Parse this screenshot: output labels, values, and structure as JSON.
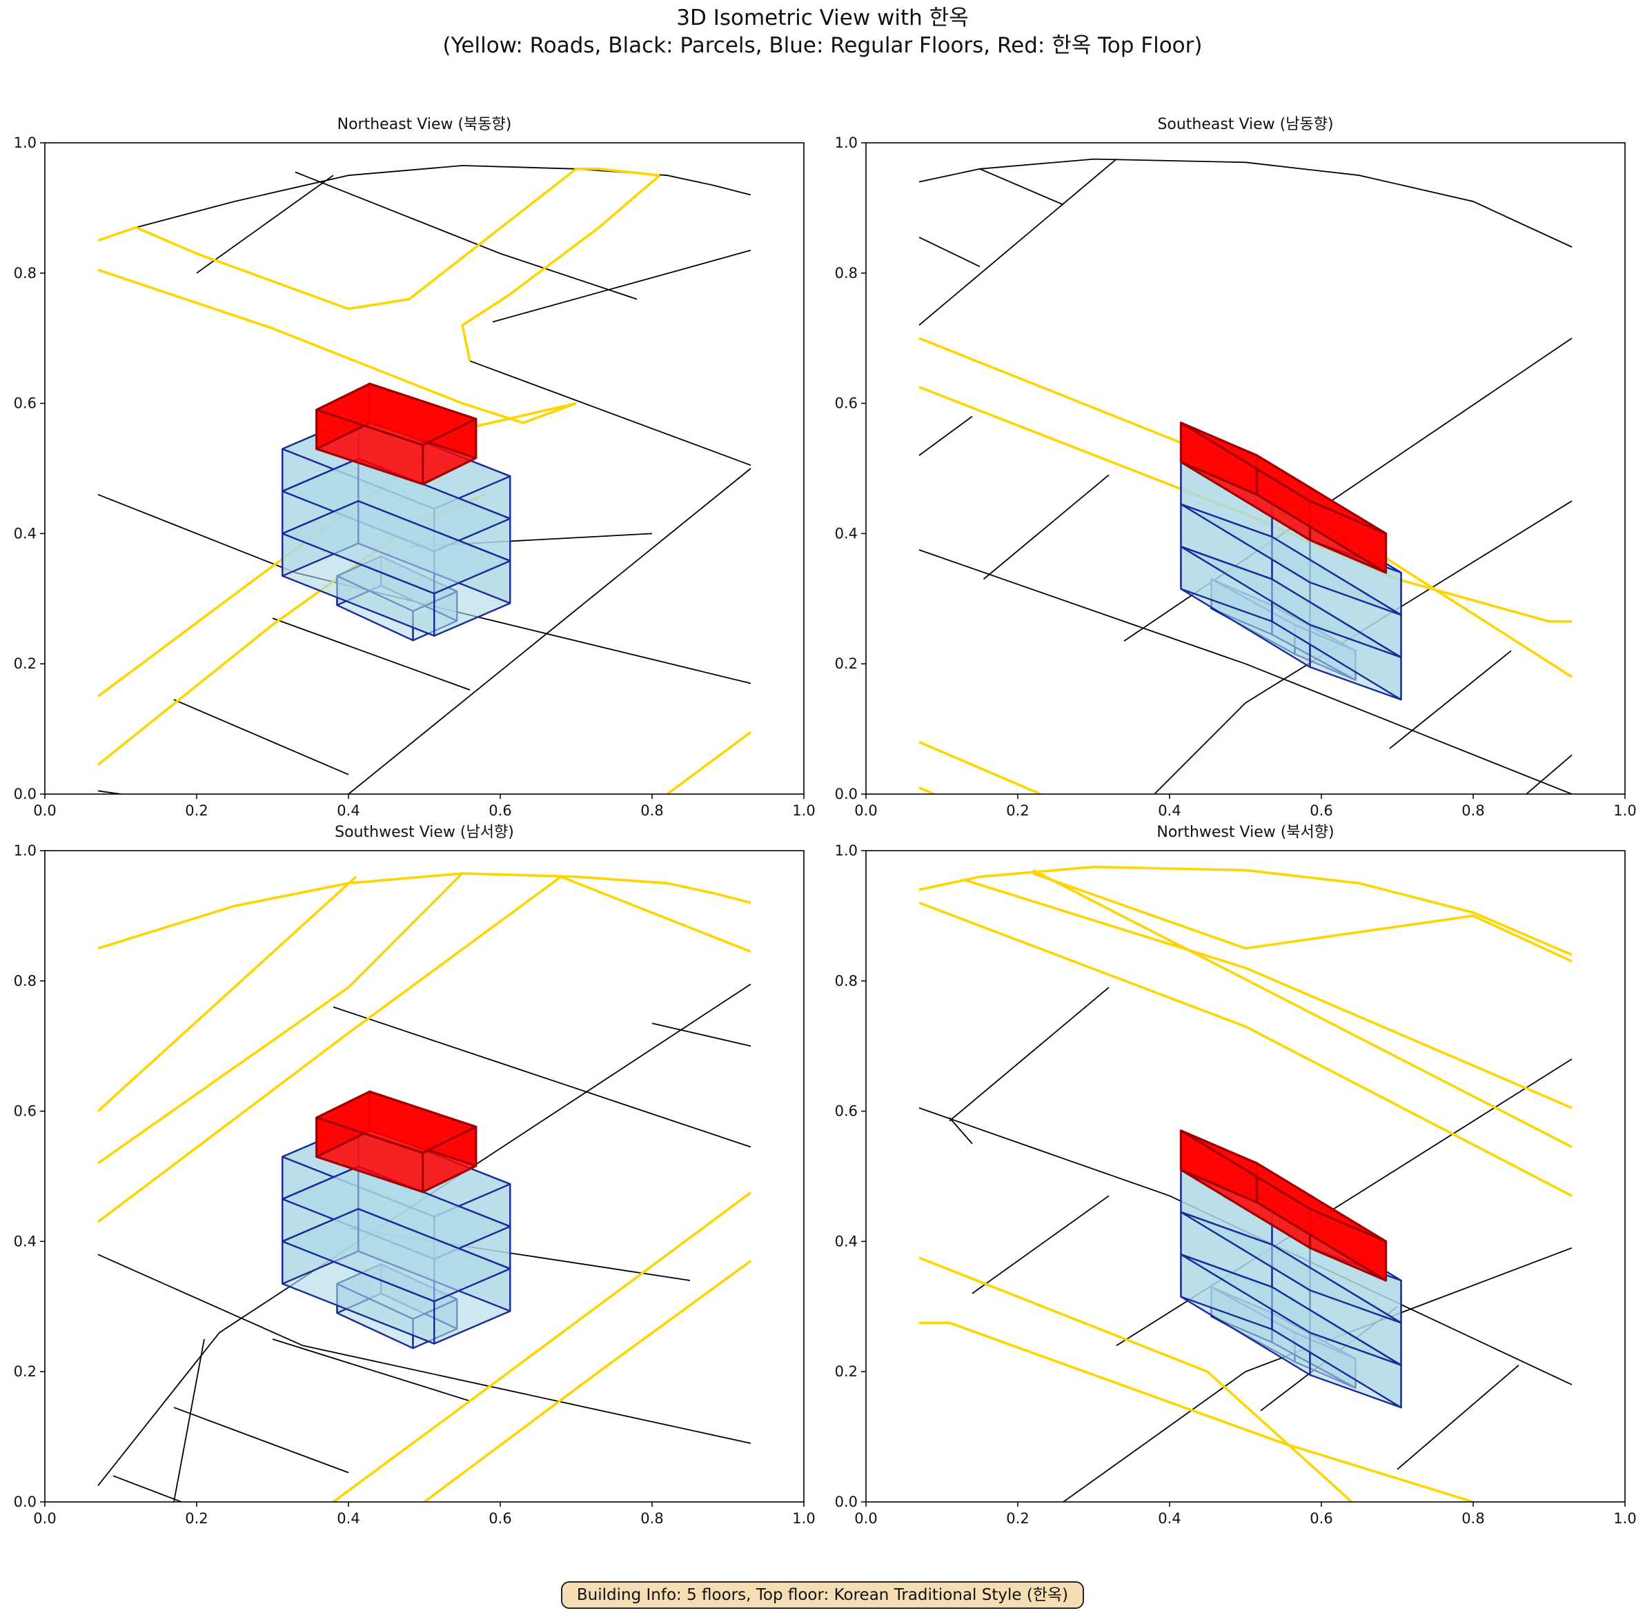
{
  "figure": {
    "title_line1": "3D Isometric View with 한옥",
    "title_line2": "(Yellow: Roads, Black: Parcels, Blue: Regular Floors, Red: 한옥 Top Floor)",
    "info_box": "Building Info: 5 floors, Top floor: Korean Traditional Style (한옥)"
  },
  "colors": {
    "road": "#FFD500",
    "road_edge": "#1a1a00",
    "parcel": "#000000",
    "floor_fill": "#ADD8E6",
    "floor_edge": "#1a2a9a",
    "hanok_fill": "#FF0000",
    "hanok_edge": "#a00000"
  },
  "chart_data": [
    {
      "type": "line",
      "title": "Northeast View (북동향)",
      "xlim": [
        0,
        1
      ],
      "ylim": [
        0,
        1
      ],
      "xticks": [
        "0.0",
        "0.2",
        "0.4",
        "0.6",
        "0.8",
        "1.0"
      ],
      "yticks": [
        "0.0",
        "0.2",
        "0.4",
        "0.6",
        "0.8",
        "1.0"
      ],
      "roads": [
        [
          [
            0.07,
            0.85
          ],
          [
            0.12,
            0.87
          ],
          [
            0.2,
            0.83
          ],
          [
            0.4,
            0.745
          ],
          [
            0.48,
            0.76
          ],
          [
            0.7,
            0.96
          ],
          [
            0.73,
            0.96
          ],
          [
            0.81,
            0.95
          ]
        ],
        [
          [
            0.07,
            0.805
          ],
          [
            0.3,
            0.715
          ],
          [
            0.55,
            0.6
          ],
          [
            0.63,
            0.57
          ],
          [
            0.7,
            0.6
          ]
        ],
        [
          [
            0.07,
            0.15
          ],
          [
            0.3,
            0.35
          ],
          [
            0.55,
            0.56
          ],
          [
            0.7,
            0.6
          ]
        ],
        [
          [
            0.07,
            0.045
          ],
          [
            0.3,
            0.26
          ],
          [
            0.48,
            0.41
          ],
          [
            0.58,
            0.46
          ]
        ],
        [
          [
            0.56,
            0.665
          ],
          [
            0.55,
            0.72
          ],
          [
            0.61,
            0.765
          ],
          [
            0.73,
            0.87
          ],
          [
            0.81,
            0.95
          ]
        ],
        [
          [
            0.82,
            0.0
          ],
          [
            0.93,
            0.095
          ]
        ]
      ],
      "parcels": [
        [
          [
            0.12,
            0.87
          ],
          [
            0.25,
            0.91
          ],
          [
            0.4,
            0.95
          ],
          [
            0.55,
            0.965
          ],
          [
            0.7,
            0.96
          ],
          [
            0.82,
            0.95
          ],
          [
            0.88,
            0.935
          ],
          [
            0.93,
            0.92
          ]
        ],
        [
          [
            0.2,
            0.8
          ],
          [
            0.38,
            0.95
          ]
        ],
        [
          [
            0.33,
            0.955
          ],
          [
            0.6,
            0.83
          ],
          [
            0.78,
            0.76
          ]
        ],
        [
          [
            0.56,
            0.665
          ],
          [
            0.93,
            0.505
          ]
        ],
        [
          [
            0.59,
            0.725
          ],
          [
            0.93,
            0.835
          ]
        ],
        [
          [
            0.07,
            0.46
          ],
          [
            0.33,
            0.34
          ],
          [
            0.93,
            0.17
          ]
        ],
        [
          [
            0.3,
            0.27
          ],
          [
            0.56,
            0.16
          ]
        ],
        [
          [
            0.4,
            0.0
          ],
          [
            0.93,
            0.5
          ]
        ],
        [
          [
            0.17,
            0.145
          ],
          [
            0.4,
            0.03
          ]
        ],
        [
          [
            0.07,
            0.005
          ],
          [
            0.1,
            0.0
          ]
        ],
        [
          [
            0.48,
            0.38
          ],
          [
            0.8,
            0.4
          ]
        ]
      ],
      "building": {
        "cx": 0.413,
        "top": 0.53,
        "floor_h": 0.065,
        "wx": 0.1,
        "wy": 0.046,
        "dx": 0.1,
        "dy": -0.05,
        "annex": {
          "cx": 0.435,
          "top": 0.335,
          "h": 0.045,
          "wx": 0.05,
          "wy": 0.027,
          "dx": 0.058,
          "dy": -0.03
        },
        "hanok": {
          "h": 0.06,
          "wx": 0.07,
          "wy": 0.027,
          "dx": 0.07,
          "dy": -0.04
        }
      }
    },
    {
      "type": "line",
      "title": "Southeast View (남동향)",
      "xlim": [
        0,
        1
      ],
      "ylim": [
        0,
        1
      ],
      "xticks": [
        "0.0",
        "0.2",
        "0.4",
        "0.6",
        "0.8",
        "1.0"
      ],
      "yticks": [
        "0.0",
        "0.2",
        "0.4",
        "0.6",
        "0.8",
        "1.0"
      ],
      "roads": [
        [
          [
            0.07,
            0.7
          ],
          [
            0.5,
            0.5
          ],
          [
            0.93,
            0.18
          ]
        ],
        [
          [
            0.07,
            0.625
          ],
          [
            0.5,
            0.43
          ],
          [
            0.7,
            0.33
          ],
          [
            0.9,
            0.265
          ],
          [
            0.93,
            0.265
          ]
        ],
        [
          [
            0.07,
            0.08
          ],
          [
            0.23,
            0.0
          ]
        ],
        [
          [
            0.07,
            0.01
          ],
          [
            0.09,
            0.0
          ]
        ]
      ],
      "parcels": [
        [
          [
            0.07,
            0.94
          ],
          [
            0.15,
            0.96
          ],
          [
            0.3,
            0.975
          ],
          [
            0.5,
            0.97
          ],
          [
            0.65,
            0.95
          ],
          [
            0.8,
            0.91
          ],
          [
            0.93,
            0.84
          ]
        ],
        [
          [
            0.07,
            0.72
          ],
          [
            0.33,
            0.975
          ]
        ],
        [
          [
            0.15,
            0.96
          ],
          [
            0.26,
            0.905
          ]
        ],
        [
          [
            0.07,
            0.855
          ],
          [
            0.15,
            0.81
          ]
        ],
        [
          [
            0.07,
            0.52
          ],
          [
            0.14,
            0.58
          ]
        ],
        [
          [
            0.07,
            0.375
          ],
          [
            0.5,
            0.2
          ],
          [
            0.93,
            0.0
          ]
        ],
        [
          [
            0.155,
            0.33
          ],
          [
            0.32,
            0.49
          ]
        ],
        [
          [
            0.34,
            0.235
          ],
          [
            0.93,
            0.7
          ]
        ],
        [
          [
            0.38,
            0.0
          ],
          [
            0.5,
            0.14
          ],
          [
            0.93,
            0.45
          ]
        ],
        [
          [
            0.69,
            0.07
          ],
          [
            0.85,
            0.22
          ]
        ],
        [
          [
            0.87,
            0.0
          ],
          [
            0.93,
            0.06
          ]
        ]
      ],
      "building": {
        "cx": 0.5,
        "top": 0.51,
        "floor_h": 0.065,
        "wx": 0.085,
        "wy": 0.06,
        "dx": 0.12,
        "dy": 0.05,
        "annex": {
          "cx": 0.51,
          "top": 0.33,
          "h": 0.045,
          "wx": 0.055,
          "wy": 0.035,
          "dx": 0.08,
          "dy": 0.04
        },
        "hanok": {
          "h": 0.06,
          "wx": 0.085,
          "wy": 0.06,
          "dx": 0.1,
          "dy": 0.05
        }
      }
    },
    {
      "type": "line",
      "title": "Southwest View (남서향)",
      "xlim": [
        0,
        1
      ],
      "ylim": [
        0,
        1
      ],
      "xticks": [
        "0.0",
        "0.2",
        "0.4",
        "0.6",
        "0.8",
        "1.0"
      ],
      "yticks": [
        "0.0",
        "0.2",
        "0.4",
        "0.6",
        "0.8",
        "1.0"
      ],
      "roads": [
        [
          [
            0.07,
            0.85
          ],
          [
            0.25,
            0.915
          ],
          [
            0.4,
            0.95
          ],
          [
            0.55,
            0.965
          ],
          [
            0.7,
            0.96
          ],
          [
            0.82,
            0.95
          ],
          [
            0.88,
            0.935
          ],
          [
            0.93,
            0.92
          ]
        ],
        [
          [
            0.07,
            0.6
          ],
          [
            0.41,
            0.96
          ]
        ],
        [
          [
            0.07,
            0.52
          ],
          [
            0.4,
            0.79
          ],
          [
            0.55,
            0.965
          ]
        ],
        [
          [
            0.07,
            0.43
          ],
          [
            0.4,
            0.72
          ],
          [
            0.68,
            0.96
          ],
          [
            0.93,
            0.845
          ]
        ],
        [
          [
            0.38,
            0.0
          ],
          [
            0.56,
            0.155
          ],
          [
            0.93,
            0.475
          ]
        ],
        [
          [
            0.5,
            0.0
          ],
          [
            0.73,
            0.2
          ],
          [
            0.93,
            0.37
          ]
        ]
      ],
      "parcels": [
        [
          [
            0.07,
            0.38
          ],
          [
            0.34,
            0.24
          ],
          [
            0.93,
            0.09
          ]
        ],
        [
          [
            0.07,
            0.025
          ],
          [
            0.23,
            0.26
          ],
          [
            0.93,
            0.795
          ]
        ],
        [
          [
            0.17,
            0.0
          ],
          [
            0.21,
            0.25
          ]
        ],
        [
          [
            0.09,
            0.04
          ],
          [
            0.18,
            0.0
          ]
        ],
        [
          [
            0.17,
            0.145
          ],
          [
            0.4,
            0.045
          ]
        ],
        [
          [
            0.3,
            0.25
          ],
          [
            0.56,
            0.155
          ]
        ],
        [
          [
            0.38,
            0.76
          ],
          [
            0.93,
            0.545
          ]
        ],
        [
          [
            0.8,
            0.735
          ],
          [
            0.93,
            0.7
          ]
        ],
        [
          [
            0.4,
            0.42
          ],
          [
            0.85,
            0.34
          ]
        ]
      ],
      "building": {
        "cx": 0.413,
        "top": 0.53,
        "floor_h": 0.065,
        "wx": 0.1,
        "wy": 0.046,
        "dx": 0.1,
        "dy": -0.05,
        "annex": {
          "cx": 0.435,
          "top": 0.335,
          "h": 0.045,
          "wx": 0.05,
          "wy": 0.027,
          "dx": 0.058,
          "dy": -0.03
        },
        "hanok": {
          "h": 0.06,
          "wx": 0.07,
          "wy": 0.027,
          "dx": 0.07,
          "dy": -0.04
        }
      }
    },
    {
      "type": "line",
      "title": "Northwest View (북서향)",
      "xlim": [
        0,
        1
      ],
      "ylim": [
        0,
        1
      ],
      "xticks": [
        "0.0",
        "0.2",
        "0.4",
        "0.6",
        "0.8",
        "1.0"
      ],
      "yticks": [
        "0.0",
        "0.2",
        "0.4",
        "0.6",
        "0.8",
        "1.0"
      ],
      "roads": [
        [
          [
            0.07,
            0.94
          ],
          [
            0.15,
            0.96
          ],
          [
            0.3,
            0.975
          ],
          [
            0.5,
            0.97
          ],
          [
            0.65,
            0.95
          ],
          [
            0.8,
            0.905
          ],
          [
            0.93,
            0.84
          ]
        ],
        [
          [
            0.13,
            0.955
          ],
          [
            0.5,
            0.82
          ],
          [
            0.93,
            0.605
          ]
        ],
        [
          [
            0.22,
            0.965
          ],
          [
            0.5,
            0.85
          ],
          [
            0.8,
            0.9
          ],
          [
            0.93,
            0.83
          ]
        ],
        [
          [
            0.07,
            0.92
          ],
          [
            0.5,
            0.73
          ],
          [
            0.93,
            0.47
          ]
        ],
        [
          [
            0.22,
            0.97
          ],
          [
            0.93,
            0.545
          ]
        ],
        [
          [
            0.07,
            0.375
          ],
          [
            0.45,
            0.2
          ],
          [
            0.64,
            0.0
          ]
        ],
        [
          [
            0.07,
            0.275
          ],
          [
            0.11,
            0.275
          ],
          [
            0.55,
            0.09
          ],
          [
            0.8,
            0.0
          ]
        ]
      ],
      "parcels": [
        [
          [
            0.07,
            0.605
          ],
          [
            0.4,
            0.47
          ],
          [
            0.93,
            0.18
          ]
        ],
        [
          [
            0.11,
            0.585
          ],
          [
            0.32,
            0.79
          ]
        ],
        [
          [
            0.14,
            0.55
          ],
          [
            0.11,
            0.59
          ]
        ],
        [
          [
            0.14,
            0.32
          ],
          [
            0.32,
            0.47
          ]
        ],
        [
          [
            0.33,
            0.24
          ],
          [
            0.93,
            0.68
          ]
        ],
        [
          [
            0.26,
            0.0
          ],
          [
            0.5,
            0.2
          ],
          [
            0.93,
            0.39
          ]
        ],
        [
          [
            0.52,
            0.14
          ],
          [
            0.7,
            0.3
          ]
        ],
        [
          [
            0.7,
            0.05
          ],
          [
            0.86,
            0.21
          ]
        ]
      ],
      "building": {
        "cx": 0.5,
        "top": 0.51,
        "floor_h": 0.065,
        "wx": 0.085,
        "wy": 0.06,
        "dx": 0.12,
        "dy": 0.05,
        "annex": {
          "cx": 0.51,
          "top": 0.33,
          "h": 0.045,
          "wx": 0.055,
          "wy": 0.035,
          "dx": 0.08,
          "dy": 0.04
        },
        "hanok": {
          "h": 0.06,
          "wx": 0.085,
          "wy": 0.06,
          "dx": 0.1,
          "dy": 0.05
        }
      }
    }
  ]
}
